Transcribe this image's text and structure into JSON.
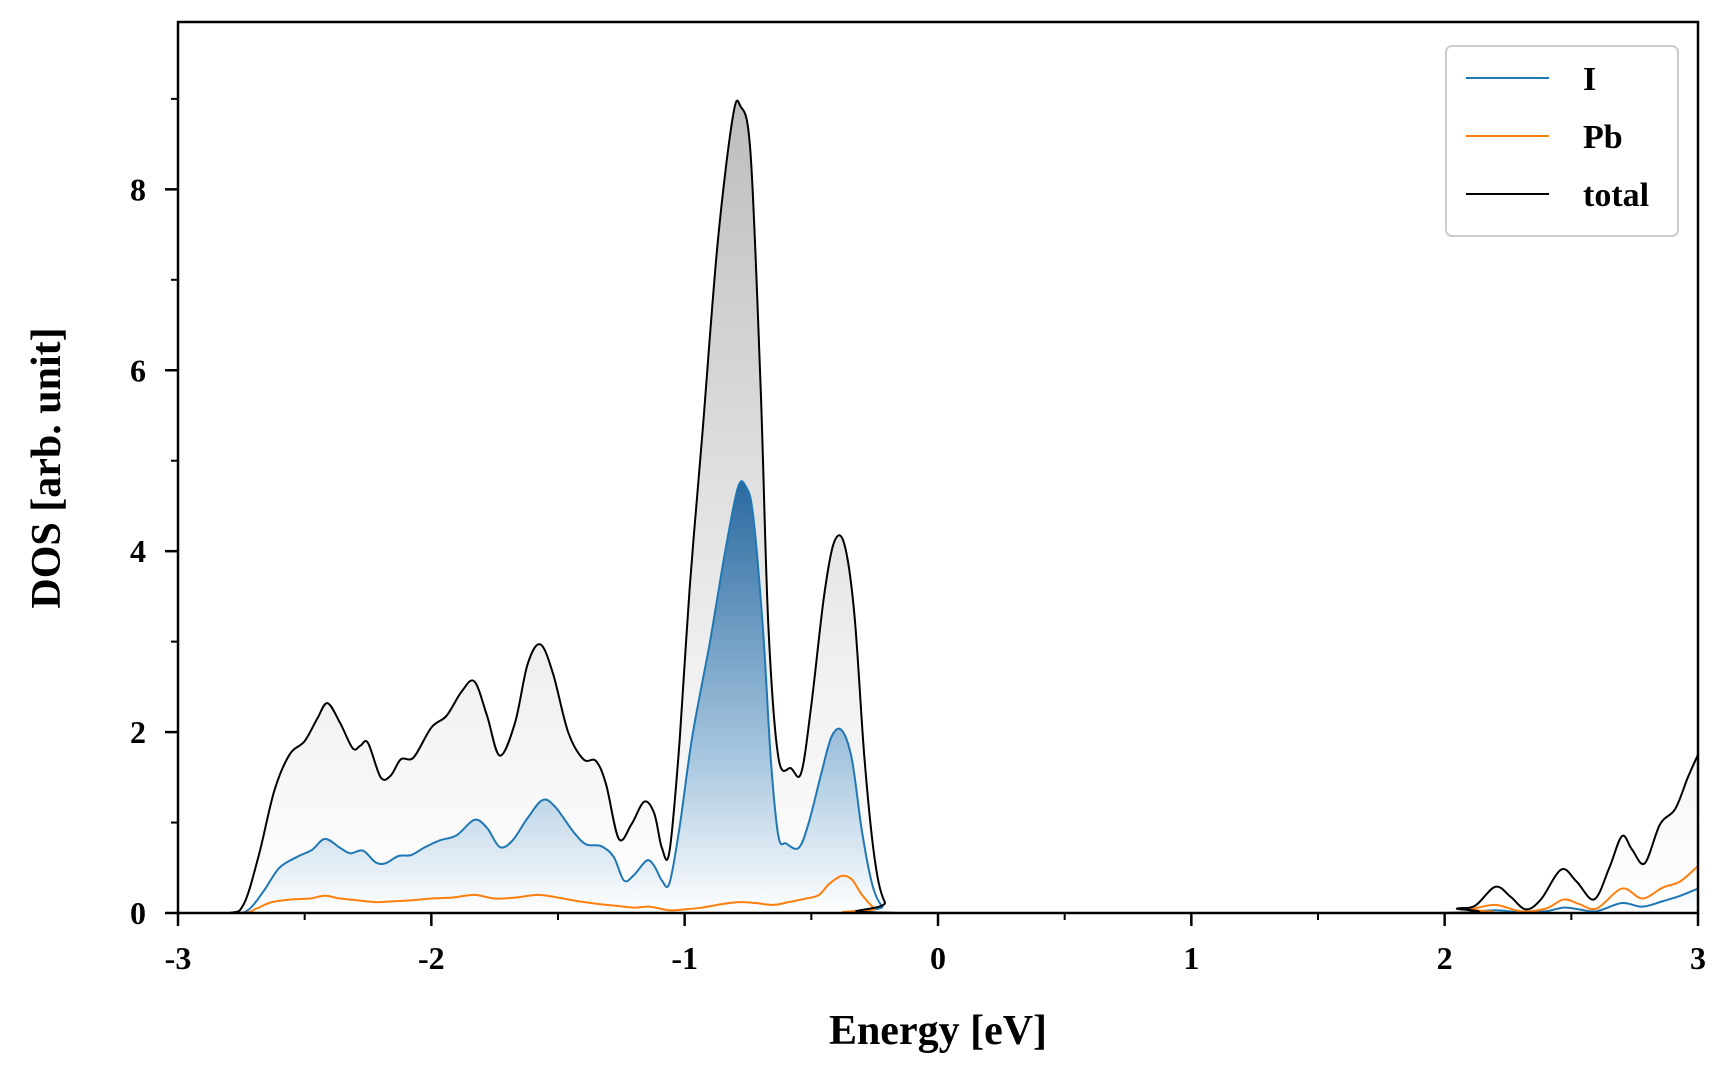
{
  "chart_data": {
    "type": "line",
    "xlabel": "Energy [eV]",
    "ylabel": "DOS [arb. unit]",
    "xlim": [
      -3,
      3
    ],
    "ylim": [
      0,
      9.85
    ],
    "x_ticks": [
      -3,
      -2,
      -1,
      0,
      1,
      2,
      3
    ],
    "y_ticks": [
      0,
      2,
      4,
      6,
      8
    ],
    "legend_position": "top-right",
    "grid": false,
    "series": [
      {
        "name": "I",
        "color": "#1f77b4",
        "fill": "blue-gradient",
        "points": [
          [
            -3.0,
            0.0
          ],
          [
            -2.78,
            0.0
          ],
          [
            -2.72,
            0.04
          ],
          [
            -2.66,
            0.25
          ],
          [
            -2.6,
            0.5
          ],
          [
            -2.53,
            0.62
          ],
          [
            -2.47,
            0.7
          ],
          [
            -2.42,
            0.82
          ],
          [
            -2.36,
            0.72
          ],
          [
            -2.32,
            0.66
          ],
          [
            -2.27,
            0.69
          ],
          [
            -2.22,
            0.56
          ],
          [
            -2.18,
            0.55
          ],
          [
            -2.13,
            0.63
          ],
          [
            -2.08,
            0.64
          ],
          [
            -2.03,
            0.72
          ],
          [
            -1.97,
            0.8
          ],
          [
            -1.9,
            0.86
          ],
          [
            -1.83,
            1.03
          ],
          [
            -1.78,
            0.94
          ],
          [
            -1.73,
            0.73
          ],
          [
            -1.68,
            0.8
          ],
          [
            -1.62,
            1.05
          ],
          [
            -1.56,
            1.25
          ],
          [
            -1.51,
            1.17
          ],
          [
            -1.44,
            0.9
          ],
          [
            -1.39,
            0.76
          ],
          [
            -1.33,
            0.74
          ],
          [
            -1.28,
            0.62
          ],
          [
            -1.24,
            0.36
          ],
          [
            -1.2,
            0.42
          ],
          [
            -1.15,
            0.58
          ],
          [
            -1.12,
            0.52
          ],
          [
            -1.09,
            0.36
          ],
          [
            -1.06,
            0.33
          ],
          [
            -1.02,
            0.95
          ],
          [
            -0.97,
            1.95
          ],
          [
            -0.9,
            3.0
          ],
          [
            -0.84,
            4.0
          ],
          [
            -0.79,
            4.7
          ],
          [
            -0.76,
            4.72
          ],
          [
            -0.73,
            4.4
          ],
          [
            -0.69,
            3.1
          ],
          [
            -0.66,
            1.7
          ],
          [
            -0.63,
            0.85
          ],
          [
            -0.6,
            0.77
          ],
          [
            -0.55,
            0.72
          ],
          [
            -0.51,
            1.0
          ],
          [
            -0.46,
            1.55
          ],
          [
            -0.42,
            1.95
          ],
          [
            -0.38,
            2.02
          ],
          [
            -0.34,
            1.7
          ],
          [
            -0.3,
            0.9
          ],
          [
            -0.26,
            0.32
          ],
          [
            -0.22,
            0.07
          ],
          [
            -0.17,
            0.0
          ],
          [
            2.0,
            0.0
          ],
          [
            2.1,
            0.01
          ],
          [
            2.2,
            0.03
          ],
          [
            2.3,
            0.01
          ],
          [
            2.4,
            0.02
          ],
          [
            2.47,
            0.06
          ],
          [
            2.53,
            0.04
          ],
          [
            2.6,
            0.02
          ],
          [
            2.7,
            0.11
          ],
          [
            2.78,
            0.07
          ],
          [
            2.86,
            0.13
          ],
          [
            2.93,
            0.19
          ],
          [
            3.0,
            0.27
          ]
        ]
      },
      {
        "name": "Pb",
        "color": "#ff7f0e",
        "fill": "none",
        "points": [
          [
            -3.0,
            0.0
          ],
          [
            -2.75,
            0.0
          ],
          [
            -2.69,
            0.05
          ],
          [
            -2.63,
            0.12
          ],
          [
            -2.55,
            0.15
          ],
          [
            -2.48,
            0.16
          ],
          [
            -2.42,
            0.19
          ],
          [
            -2.36,
            0.16
          ],
          [
            -2.29,
            0.14
          ],
          [
            -2.22,
            0.12
          ],
          [
            -2.15,
            0.13
          ],
          [
            -2.08,
            0.14
          ],
          [
            -2.0,
            0.16
          ],
          [
            -1.92,
            0.17
          ],
          [
            -1.83,
            0.2
          ],
          [
            -1.75,
            0.16
          ],
          [
            -1.67,
            0.17
          ],
          [
            -1.58,
            0.2
          ],
          [
            -1.5,
            0.17
          ],
          [
            -1.42,
            0.13
          ],
          [
            -1.34,
            0.1
          ],
          [
            -1.27,
            0.08
          ],
          [
            -1.2,
            0.06
          ],
          [
            -1.14,
            0.07
          ],
          [
            -1.06,
            0.03
          ],
          [
            -1.0,
            0.04
          ],
          [
            -0.93,
            0.06
          ],
          [
            -0.85,
            0.1
          ],
          [
            -0.78,
            0.12
          ],
          [
            -0.72,
            0.11
          ],
          [
            -0.65,
            0.09
          ],
          [
            -0.59,
            0.12
          ],
          [
            -0.52,
            0.16
          ],
          [
            -0.47,
            0.2
          ],
          [
            -0.43,
            0.32
          ],
          [
            -0.38,
            0.41
          ],
          [
            -0.34,
            0.37
          ],
          [
            -0.3,
            0.2
          ],
          [
            -0.25,
            0.05
          ],
          [
            -0.2,
            0.0
          ],
          [
            2.0,
            0.0
          ],
          [
            2.1,
            0.04
          ],
          [
            2.2,
            0.09
          ],
          [
            2.3,
            0.02
          ],
          [
            2.4,
            0.05
          ],
          [
            2.47,
            0.15
          ],
          [
            2.53,
            0.1
          ],
          [
            2.6,
            0.05
          ],
          [
            2.7,
            0.27
          ],
          [
            2.78,
            0.16
          ],
          [
            2.86,
            0.28
          ],
          [
            2.93,
            0.35
          ],
          [
            3.0,
            0.52
          ]
        ]
      },
      {
        "name": "total",
        "color": "#000000",
        "fill": "gray-gradient",
        "points": [
          [
            -3.0,
            0.0
          ],
          [
            -2.8,
            0.0
          ],
          [
            -2.74,
            0.1
          ],
          [
            -2.68,
            0.65
          ],
          [
            -2.62,
            1.35
          ],
          [
            -2.56,
            1.75
          ],
          [
            -2.5,
            1.9
          ],
          [
            -2.45,
            2.15
          ],
          [
            -2.41,
            2.32
          ],
          [
            -2.36,
            2.1
          ],
          [
            -2.31,
            1.82
          ],
          [
            -2.28,
            1.85
          ],
          [
            -2.25,
            1.88
          ],
          [
            -2.2,
            1.5
          ],
          [
            -2.16,
            1.52
          ],
          [
            -2.12,
            1.7
          ],
          [
            -2.07,
            1.72
          ],
          [
            -2.0,
            2.05
          ],
          [
            -1.94,
            2.18
          ],
          [
            -1.88,
            2.45
          ],
          [
            -1.83,
            2.56
          ],
          [
            -1.78,
            2.18
          ],
          [
            -1.73,
            1.74
          ],
          [
            -1.67,
            2.1
          ],
          [
            -1.62,
            2.75
          ],
          [
            -1.57,
            2.97
          ],
          [
            -1.52,
            2.65
          ],
          [
            -1.46,
            2.0
          ],
          [
            -1.4,
            1.7
          ],
          [
            -1.35,
            1.68
          ],
          [
            -1.31,
            1.42
          ],
          [
            -1.26,
            0.82
          ],
          [
            -1.21,
            0.98
          ],
          [
            -1.16,
            1.23
          ],
          [
            -1.12,
            1.1
          ],
          [
            -1.09,
            0.72
          ],
          [
            -1.06,
            0.68
          ],
          [
            -1.02,
            1.9
          ],
          [
            -0.98,
            3.6
          ],
          [
            -0.93,
            5.3
          ],
          [
            -0.87,
            7.4
          ],
          [
            -0.81,
            8.8
          ],
          [
            -0.78,
            8.92
          ],
          [
            -0.74,
            8.4
          ],
          [
            -0.7,
            5.8
          ],
          [
            -0.67,
            3.2
          ],
          [
            -0.63,
            1.72
          ],
          [
            -0.58,
            1.6
          ],
          [
            -0.54,
            1.55
          ],
          [
            -0.5,
            2.3
          ],
          [
            -0.45,
            3.5
          ],
          [
            -0.41,
            4.1
          ],
          [
            -0.37,
            4.08
          ],
          [
            -0.33,
            3.3
          ],
          [
            -0.29,
            1.7
          ],
          [
            -0.25,
            0.6
          ],
          [
            -0.21,
            0.12
          ],
          [
            -0.15,
            0.0
          ],
          [
            1.95,
            0.0
          ],
          [
            2.05,
            0.05
          ],
          [
            2.12,
            0.08
          ],
          [
            2.2,
            0.29
          ],
          [
            2.26,
            0.18
          ],
          [
            2.32,
            0.04
          ],
          [
            2.38,
            0.15
          ],
          [
            2.46,
            0.48
          ],
          [
            2.52,
            0.35
          ],
          [
            2.59,
            0.15
          ],
          [
            2.65,
            0.5
          ],
          [
            2.7,
            0.85
          ],
          [
            2.74,
            0.7
          ],
          [
            2.79,
            0.55
          ],
          [
            2.85,
            0.98
          ],
          [
            2.91,
            1.15
          ],
          [
            2.96,
            1.5
          ],
          [
            3.0,
            1.75
          ]
        ]
      }
    ]
  }
}
